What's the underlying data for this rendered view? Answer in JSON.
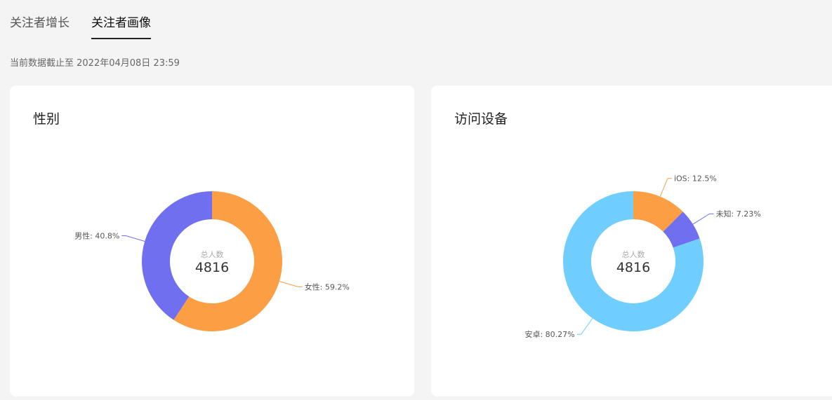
{
  "tabs": [
    {
      "label": "关注者增长",
      "active": false
    },
    {
      "label": "关注者画像",
      "active": true
    }
  ],
  "update_note": "当前数据截止至 2022年04月08日 23:59",
  "colors": {
    "orange": "#fb9e44",
    "purple": "#6f6ff0",
    "blue": "#6fcefe"
  },
  "chart_data": [
    {
      "type": "pie",
      "title": "性别",
      "center_label": "总人数",
      "center_value": "4816",
      "slices": [
        {
          "name": "女性",
          "label": "女性: 59.2%",
          "value": 59.2,
          "color": "#fb9e44"
        },
        {
          "name": "男性",
          "label": "男性: 40.8%",
          "value": 40.8,
          "color": "#6f6ff0"
        }
      ]
    },
    {
      "type": "pie",
      "title": "访问设备",
      "center_label": "总人数",
      "center_value": "4816",
      "slices": [
        {
          "name": "iOS",
          "label": "iOS: 12.5%",
          "value": 12.5,
          "color": "#fb9e44"
        },
        {
          "name": "未知",
          "label": "未知: 7.23%",
          "value": 7.23,
          "color": "#6f6ff0"
        },
        {
          "name": "安卓",
          "label": "安卓: 80.27%",
          "value": 80.27,
          "color": "#6fcefe"
        }
      ]
    }
  ]
}
